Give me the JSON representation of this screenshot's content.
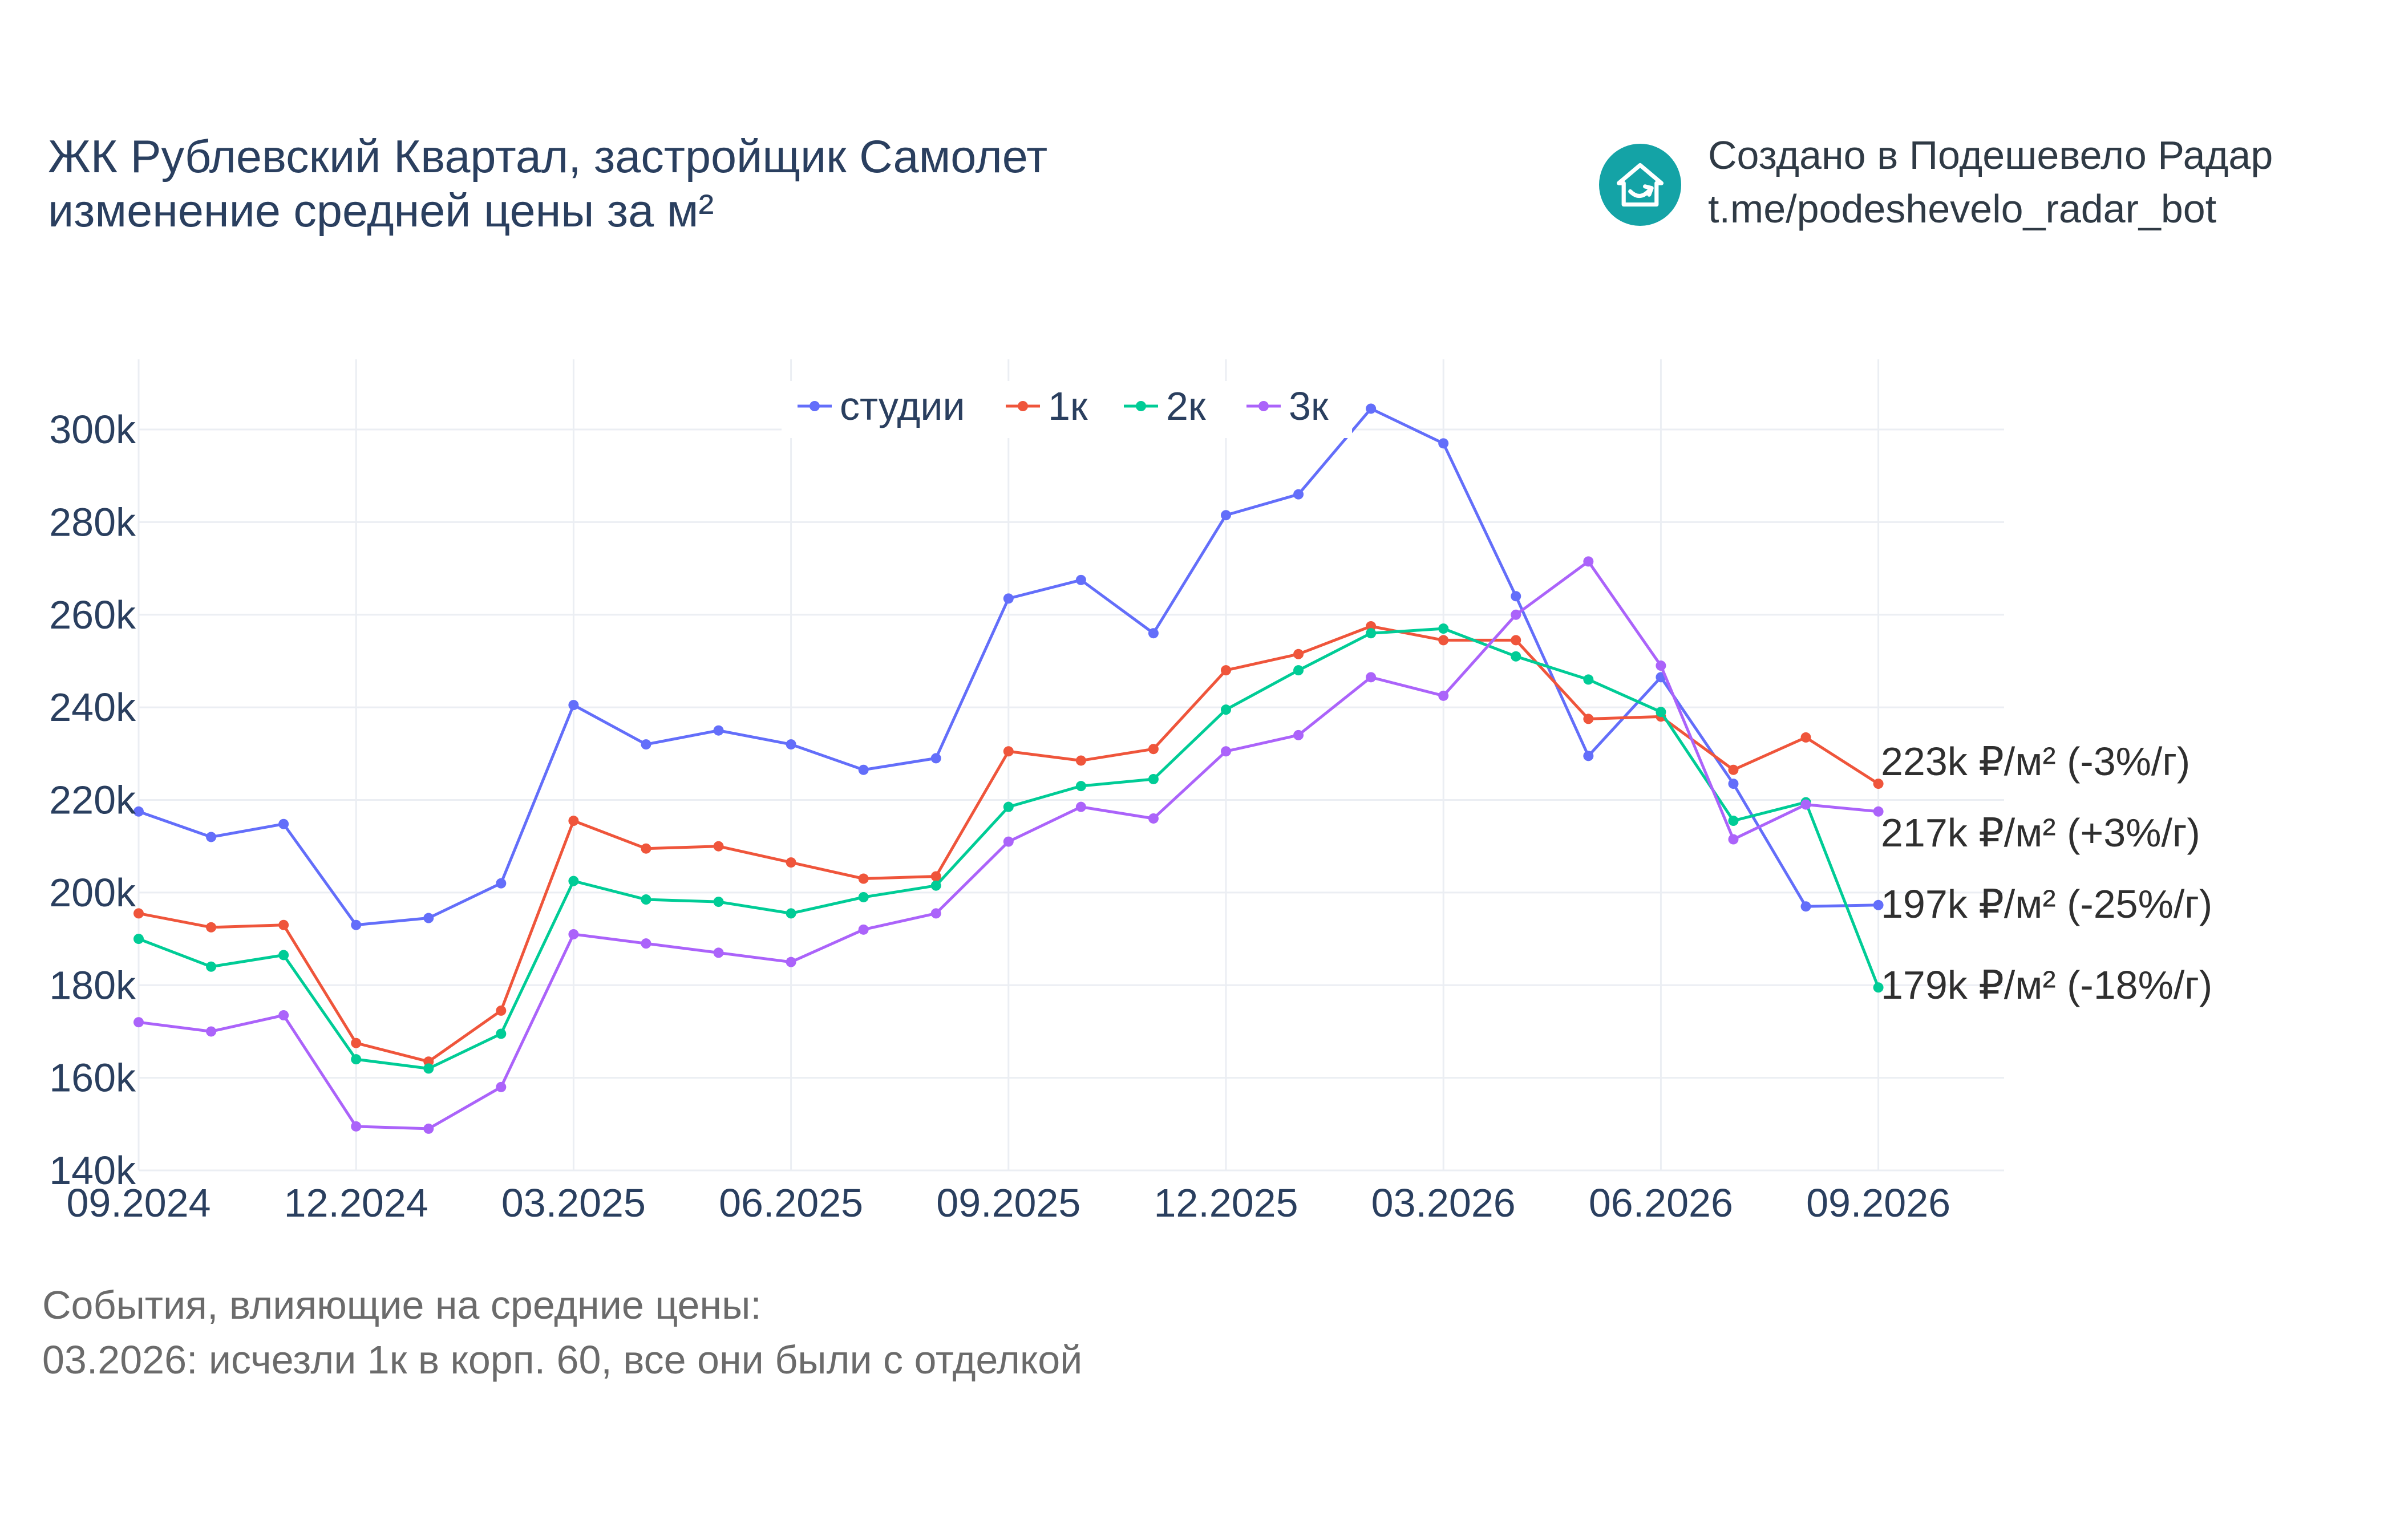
{
  "header": {
    "title_line1": "ЖК Рублевский Квартал, застройщик Самолет",
    "title_line2": "изменение средней цены за м²"
  },
  "credit": {
    "line1": "Создано в Подешевело Радар",
    "line2": "t.me/podeshevelo_radar_bot",
    "logo_icon": "house-arrow-icon",
    "logo_color": "#14a3a6"
  },
  "events": {
    "heading": "События, влияющие на средние цены:",
    "items": [
      "03.2026: исчезли 1к в корп. 60, все они были с отделкой"
    ]
  },
  "chart_data": {
    "type": "line",
    "title": "",
    "xlabel": "",
    "ylabel": "",
    "x": [
      "09.2024",
      "10.2024",
      "11.2024",
      "12.2024",
      "01.2025",
      "02.2025",
      "03.2025",
      "04.2025",
      "05.2025",
      "06.2025",
      "07.2025",
      "08.2025",
      "09.2025",
      "10.2025",
      "11.2025",
      "12.2025",
      "01.2026",
      "02.2026",
      "03.2026",
      "04.2026",
      "05.2026",
      "06.2026",
      "07.2026",
      "08.2026",
      "09.2026"
    ],
    "x_tick_labels": [
      "09.2024",
      "12.2024",
      "03.2025",
      "06.2025",
      "09.2025",
      "12.2025",
      "03.2026",
      "06.2026",
      "09.2026"
    ],
    "y_ticks": [
      140000,
      160000,
      180000,
      200000,
      220000,
      240000,
      260000,
      280000,
      300000
    ],
    "y_tick_labels": [
      "140k",
      "160k",
      "180k",
      "200k",
      "220k",
      "240k",
      "260k",
      "280k",
      "300k"
    ],
    "ylim": [
      140000,
      315000
    ],
    "grid": true,
    "legend_position": "top-center",
    "series": [
      {
        "name": "студии",
        "color": "#636efa",
        "values": [
          217500,
          212000,
          214800,
          193000,
          194500,
          202000,
          240500,
          232000,
          235000,
          232000,
          226500,
          229000,
          263500,
          267500,
          256000,
          281500,
          286000,
          304500,
          297000,
          264000,
          229500,
          246500,
          223500,
          197000,
          197300
        ]
      },
      {
        "name": "1к",
        "color": "#ef553b",
        "values": [
          195500,
          192500,
          193000,
          167500,
          163500,
          174500,
          215500,
          209500,
          210000,
          206500,
          203000,
          203500,
          230500,
          228500,
          231000,
          248000,
          251500,
          257500,
          254500,
          254500,
          237500,
          238000,
          226500,
          233500,
          223500
        ]
      },
      {
        "name": "2к",
        "color": "#00cc96",
        "values": [
          190000,
          184000,
          186500,
          164000,
          162000,
          169500,
          202500,
          198500,
          198000,
          195500,
          199000,
          201500,
          218500,
          223000,
          224500,
          239500,
          248000,
          256000,
          257000,
          251000,
          246000,
          239000,
          215500,
          219500,
          179500
        ]
      },
      {
        "name": "3к",
        "color": "#ab63fa",
        "values": [
          172000,
          170000,
          173500,
          149500,
          149000,
          158000,
          191000,
          189000,
          187000,
          185000,
          192000,
          195500,
          211000,
          218500,
          216000,
          230500,
          234000,
          246500,
          242500,
          260000,
          271500,
          249000,
          211500,
          219000,
          217500
        ]
      }
    ],
    "end_labels": [
      {
        "text": "223k ₽/м² (-3%/г)",
        "series": "1к"
      },
      {
        "text": "217k ₽/м² (+3%/г)",
        "series": "3к"
      },
      {
        "text": "197k ₽/м² (-25%/г)",
        "series": "студии"
      },
      {
        "text": "179k ₽/м² (-18%/г)",
        "series": "2к"
      }
    ]
  }
}
